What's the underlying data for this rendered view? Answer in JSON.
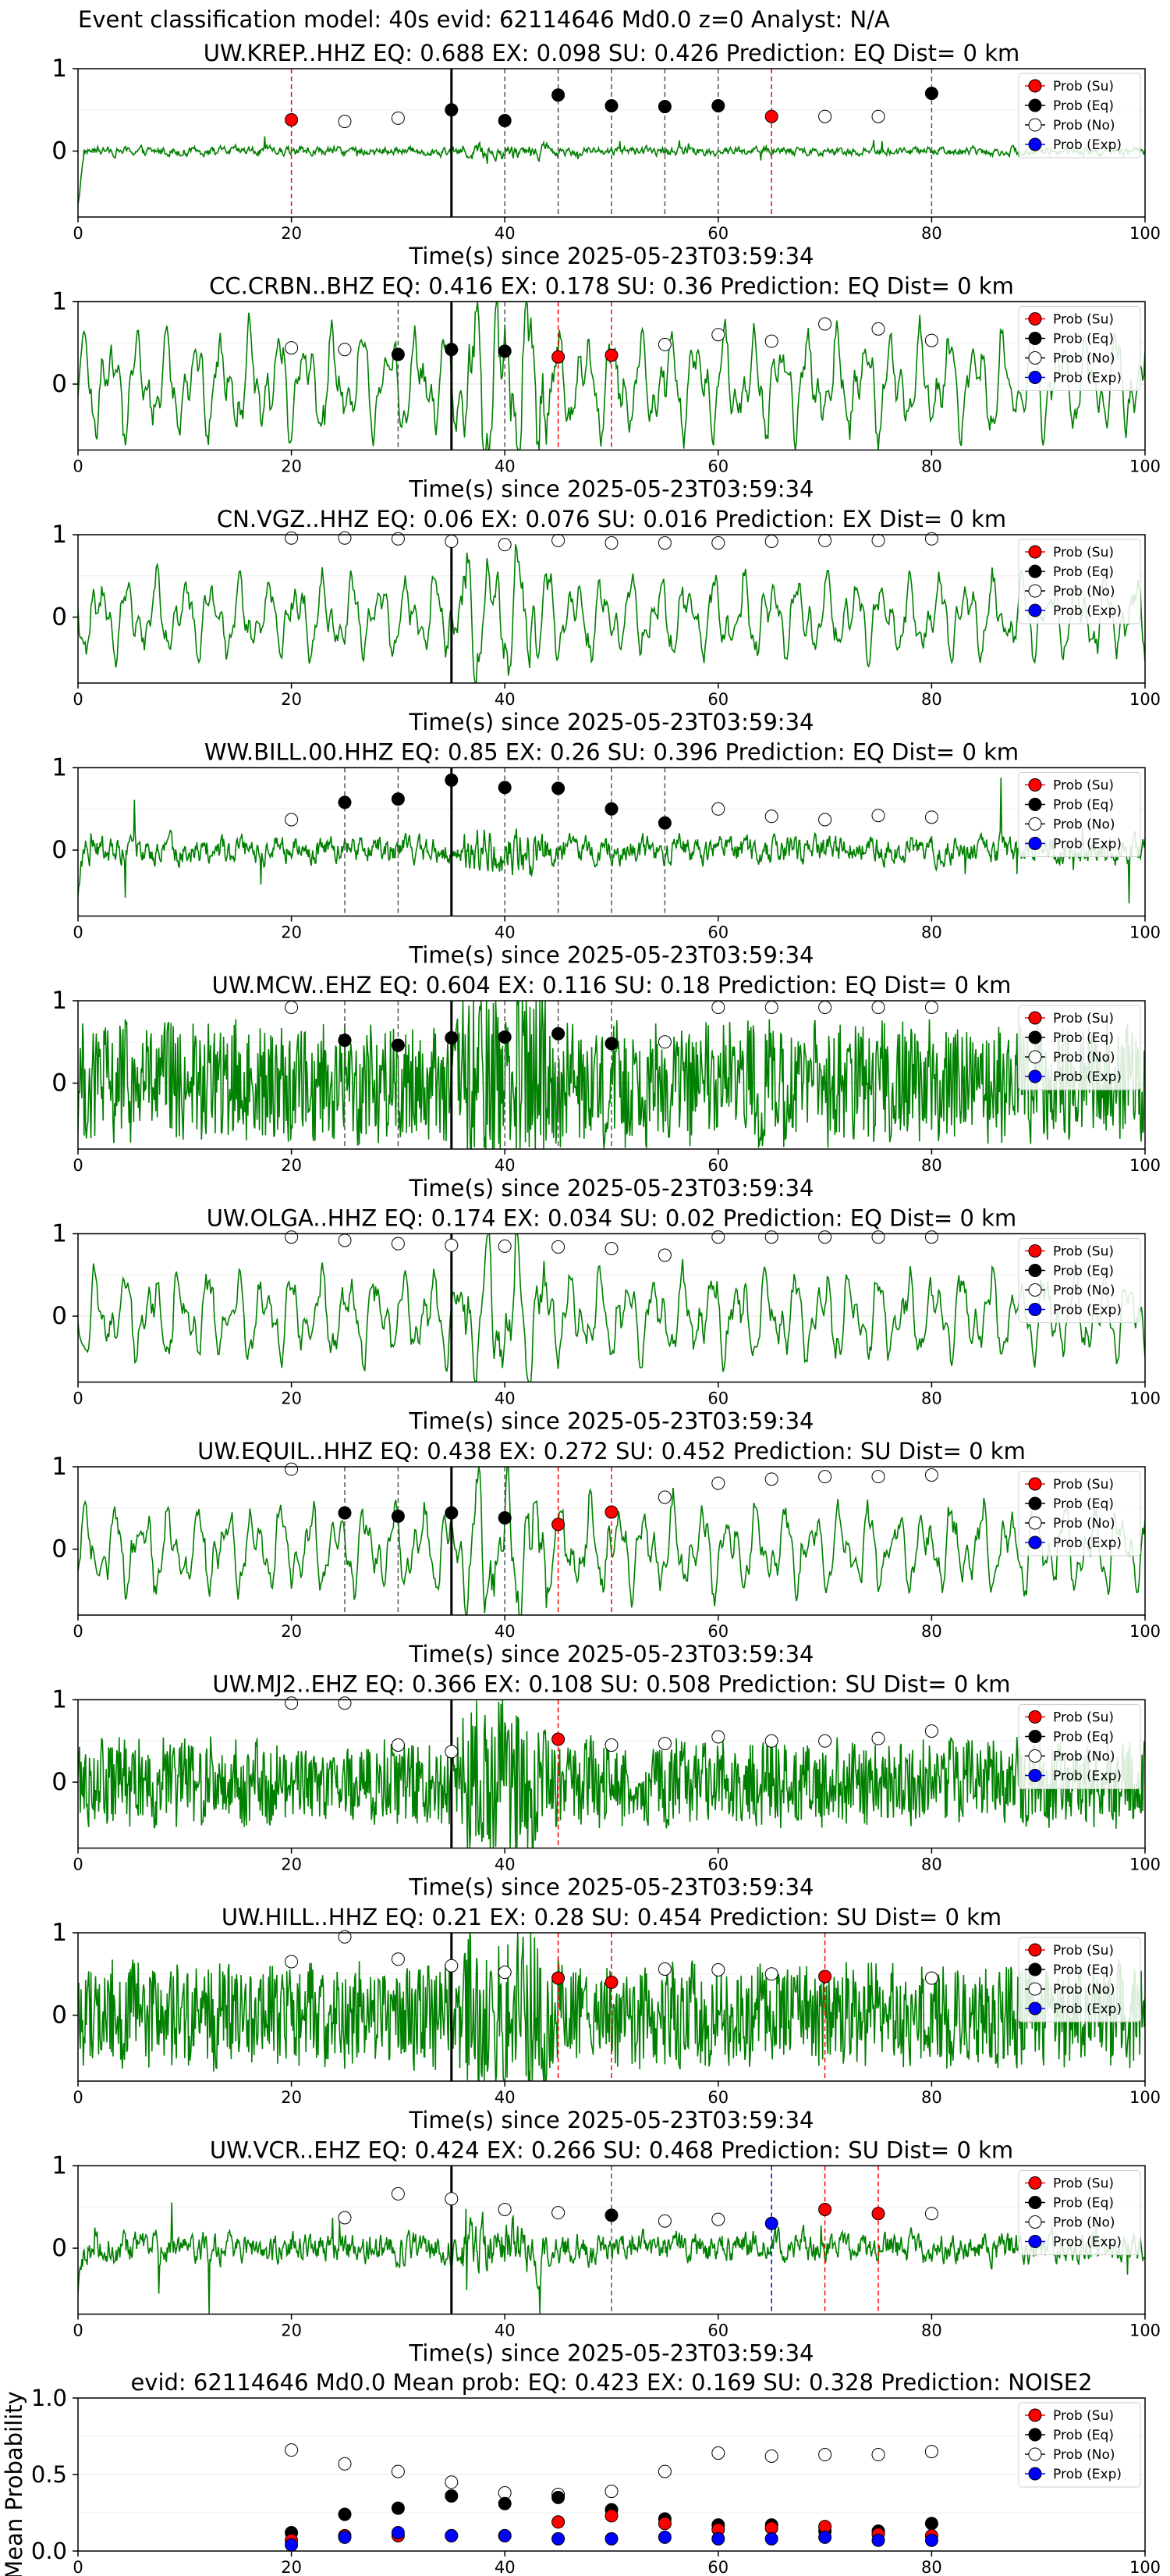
{
  "figure_title": "Event classification model: 40s evid: 62114646 Md0.0 z=0 Analyst: N/A",
  "colors": {
    "waveform": "#008000",
    "su": "#ff0000",
    "eq": "#000000",
    "no": "#ffffff",
    "exp": "#0000ff",
    "origin_line": "#000000"
  },
  "legend_labels": [
    "Prob (Su)",
    "Prob (Eq)",
    "Prob (No)",
    "Prob (Exp)"
  ],
  "chart_data": [
    {
      "type": "scatter",
      "station": "UW.KREP..HHZ",
      "title": "UW.KREP..HHZ   EQ: 0.688  EX: 0.098  SU: 0.426   Prediction: EQ    Dist= 0 km",
      "xlabel": "Time(s) since 2025-05-23T03:59:34",
      "xlim": [
        0,
        100
      ],
      "ylim": [
        -0.8,
        1
      ],
      "xticks": [
        "0",
        "20",
        "40",
        "60",
        "80",
        "100"
      ],
      "yticks": [
        "0",
        "1"
      ],
      "noise_style": "spiky",
      "waveform_amp": 0.1,
      "origin_time": 35,
      "points": {
        "su": [
          [
            20,
            0.38
          ],
          [
            65,
            0.42
          ]
        ],
        "eq": [
          [
            35,
            0.5
          ],
          [
            40,
            0.37
          ],
          [
            45,
            0.68
          ],
          [
            50,
            0.55
          ],
          [
            55,
            0.54
          ],
          [
            60,
            0.55
          ],
          [
            80,
            0.7
          ]
        ],
        "no": [
          [
            25,
            0.36
          ],
          [
            30,
            0.4
          ],
          [
            70,
            0.42
          ],
          [
            75,
            0.42
          ]
        ],
        "exp": []
      },
      "vlines": {
        "su": [
          20,
          65
        ],
        "eq": [
          40,
          45,
          50,
          55,
          60,
          80
        ],
        "exp": []
      }
    },
    {
      "type": "scatter",
      "station": "CC.CRBN..BHZ",
      "title": "CC.CRBN..BHZ   EQ: 0.416  EX: 0.178  SU: 0.36   Prediction: EQ    Dist= 0 km",
      "xlabel": "Time(s) since 2025-05-23T03:59:34",
      "xlim": [
        0,
        100
      ],
      "ylim": [
        -0.8,
        1
      ],
      "xticks": [
        "0",
        "20",
        "40",
        "60",
        "80",
        "100"
      ],
      "yticks": [
        "0",
        "1"
      ],
      "noise_style": "lowfreq",
      "waveform_amp": 0.7,
      "origin_time": 35,
      "points": {
        "su": [
          [
            45,
            0.33
          ],
          [
            50,
            0.35
          ]
        ],
        "eq": [
          [
            30,
            0.36
          ],
          [
            35,
            0.42
          ],
          [
            40,
            0.4
          ]
        ],
        "no": [
          [
            20,
            0.44
          ],
          [
            25,
            0.42
          ],
          [
            55,
            0.48
          ],
          [
            60,
            0.6
          ],
          [
            65,
            0.52
          ],
          [
            70,
            0.73
          ],
          [
            75,
            0.67
          ],
          [
            80,
            0.53
          ]
        ],
        "exp": []
      },
      "vlines": {
        "su": [
          45,
          50
        ],
        "eq": [
          30,
          40
        ],
        "exp": []
      }
    },
    {
      "type": "scatter",
      "station": "CN.VGZ..HHZ",
      "title": "CN.VGZ..HHZ   EQ: 0.06  EX: 0.076  SU: 0.016   Prediction: EX    Dist= 0 km",
      "xlabel": "Time(s) since 2025-05-23T03:59:34",
      "xlim": [
        0,
        100
      ],
      "ylim": [
        -0.8,
        1
      ],
      "xticks": [
        "0",
        "20",
        "40",
        "60",
        "80",
        "100"
      ],
      "yticks": [
        "0",
        "1"
      ],
      "noise_style": "lowfreq",
      "waveform_amp": 0.55,
      "origin_time": 35,
      "points": {
        "su": [],
        "eq": [],
        "no": [
          [
            20,
            0.96
          ],
          [
            25,
            0.96
          ],
          [
            30,
            0.95
          ],
          [
            35,
            0.92
          ],
          [
            40,
            0.88
          ],
          [
            45,
            0.93
          ],
          [
            50,
            0.9
          ],
          [
            55,
            0.9
          ],
          [
            60,
            0.9
          ],
          [
            65,
            0.92
          ],
          [
            70,
            0.93
          ],
          [
            75,
            0.93
          ],
          [
            80,
            0.95
          ]
        ],
        "exp": []
      },
      "vlines": {
        "su": [],
        "eq": [],
        "exp": []
      }
    },
    {
      "type": "scatter",
      "station": "WW.BILL.00.HHZ",
      "title": "WW.BILL.00.HHZ   EQ: 0.85  EX: 0.26  SU: 0.396   Prediction: EQ    Dist= 0 km",
      "xlabel": "Time(s) since 2025-05-23T03:59:34",
      "xlim": [
        0,
        100
      ],
      "ylim": [
        -0.8,
        1
      ],
      "xticks": [
        "0",
        "20",
        "40",
        "60",
        "80",
        "100"
      ],
      "yticks": [
        "0",
        "1"
      ],
      "noise_style": "spiky",
      "waveform_amp": 0.3,
      "origin_time": 35,
      "points": {
        "su": [],
        "eq": [
          [
            25,
            0.58
          ],
          [
            30,
            0.62
          ],
          [
            35,
            0.85
          ],
          [
            40,
            0.76
          ],
          [
            45,
            0.75
          ],
          [
            50,
            0.5
          ],
          [
            55,
            0.33
          ]
        ],
        "no": [
          [
            20,
            0.37
          ],
          [
            60,
            0.5
          ],
          [
            65,
            0.41
          ],
          [
            70,
            0.37
          ],
          [
            75,
            0.42
          ],
          [
            80,
            0.4
          ]
        ],
        "exp": []
      },
      "vlines": {
        "su": [],
        "eq": [
          25,
          30,
          40,
          45,
          50,
          55
        ],
        "exp": []
      }
    },
    {
      "type": "scatter",
      "station": "UW.MCW..EHZ",
      "title": "UW.MCW..EHZ   EQ: 0.604  EX: 0.116  SU: 0.18   Prediction: EQ    Dist= 0 km",
      "xlabel": "Time(s) since 2025-05-23T03:59:34",
      "xlim": [
        0,
        100
      ],
      "ylim": [
        -0.8,
        1
      ],
      "xticks": [
        "0",
        "20",
        "40",
        "60",
        "80",
        "100"
      ],
      "yticks": [
        "0",
        "1"
      ],
      "noise_style": "dense",
      "waveform_amp": 0.7,
      "origin_time": 35,
      "points": {
        "su": [],
        "eq": [
          [
            25,
            0.52
          ],
          [
            30,
            0.46
          ],
          [
            35,
            0.55
          ],
          [
            40,
            0.56
          ],
          [
            45,
            0.6
          ],
          [
            50,
            0.48
          ]
        ],
        "no": [
          [
            20,
            0.92
          ],
          [
            55,
            0.5
          ],
          [
            60,
            0.92
          ],
          [
            65,
            0.92
          ],
          [
            70,
            0.92
          ],
          [
            75,
            0.92
          ],
          [
            80,
            0.92
          ]
        ],
        "exp": []
      },
      "vlines": {
        "su": [],
        "eq": [
          25,
          30,
          40,
          45,
          50
        ],
        "exp": []
      }
    },
    {
      "type": "scatter",
      "station": "UW.OLGA..HHZ",
      "title": "UW.OLGA..HHZ   EQ: 0.174  EX: 0.034  SU: 0.02   Prediction: EQ    Dist= 0 km",
      "xlabel": "Time(s) since 2025-05-23T03:59:34",
      "xlim": [
        0,
        100
      ],
      "ylim": [
        -0.8,
        1
      ],
      "xticks": [
        "0",
        "20",
        "40",
        "60",
        "80",
        "100"
      ],
      "yticks": [
        "0",
        "1"
      ],
      "noise_style": "lowfreq",
      "waveform_amp": 0.6,
      "origin_time": 35,
      "points": {
        "su": [],
        "eq": [],
        "no": [
          [
            20,
            0.96
          ],
          [
            25,
            0.92
          ],
          [
            30,
            0.88
          ],
          [
            35,
            0.86
          ],
          [
            40,
            0.85
          ],
          [
            45,
            0.84
          ],
          [
            50,
            0.82
          ],
          [
            55,
            0.74
          ],
          [
            60,
            0.96
          ],
          [
            65,
            0.96
          ],
          [
            70,
            0.96
          ],
          [
            75,
            0.96
          ],
          [
            80,
            0.96
          ]
        ],
        "exp": []
      },
      "vlines": {
        "su": [],
        "eq": [],
        "exp": []
      }
    },
    {
      "type": "scatter",
      "station": "UW.EQUIL..HHZ",
      "title": "UW.EQUIL..HHZ   EQ: 0.438  EX: 0.272  SU: 0.452   Prediction: SU    Dist= 0 km",
      "xlabel": "Time(s) since 2025-05-23T03:59:34",
      "xlim": [
        0,
        100
      ],
      "ylim": [
        -0.8,
        1
      ],
      "xticks": [
        "0",
        "20",
        "40",
        "60",
        "80",
        "100"
      ],
      "yticks": [
        "0",
        "1"
      ],
      "noise_style": "lowfreq",
      "waveform_amp": 0.6,
      "origin_time": 35,
      "points": {
        "su": [
          [
            45,
            0.3
          ],
          [
            50,
            0.45
          ]
        ],
        "eq": [
          [
            25,
            0.44
          ],
          [
            30,
            0.4
          ],
          [
            35,
            0.44
          ],
          [
            40,
            0.38
          ]
        ],
        "no": [
          [
            20,
            0.97
          ],
          [
            55,
            0.63
          ],
          [
            60,
            0.8
          ],
          [
            65,
            0.85
          ],
          [
            70,
            0.88
          ],
          [
            75,
            0.88
          ],
          [
            80,
            0.9
          ]
        ],
        "exp": []
      },
      "vlines": {
        "su": [
          45,
          50
        ],
        "eq": [
          25,
          30,
          40
        ],
        "exp": []
      }
    },
    {
      "type": "scatter",
      "station": "UW.MJ2..EHZ",
      "title": "UW.MJ2..EHZ   EQ: 0.366  EX: 0.108  SU: 0.508   Prediction: SU    Dist= 0 km",
      "xlabel": "Time(s) since 2025-05-23T03:59:34",
      "xlim": [
        0,
        100
      ],
      "ylim": [
        -0.8,
        1
      ],
      "xticks": [
        "0",
        "20",
        "40",
        "60",
        "80",
        "100"
      ],
      "yticks": [
        "0",
        "1"
      ],
      "noise_style": "dense",
      "waveform_amp": 0.5,
      "origin_time": 35,
      "points": {
        "su": [
          [
            45,
            0.52
          ]
        ],
        "eq": [],
        "no": [
          [
            20,
            0.96
          ],
          [
            25,
            0.96
          ],
          [
            30,
            0.45
          ],
          [
            35,
            0.37
          ],
          [
            50,
            0.45
          ],
          [
            55,
            0.47
          ],
          [
            60,
            0.55
          ],
          [
            65,
            0.5
          ],
          [
            70,
            0.5
          ],
          [
            75,
            0.53
          ],
          [
            80,
            0.62
          ]
        ],
        "exp": []
      },
      "vlines": {
        "su": [
          45
        ],
        "eq": [],
        "exp": []
      }
    },
    {
      "type": "scatter",
      "station": "UW.HILL..HHZ",
      "title": "UW.HILL..HHZ   EQ: 0.21  EX: 0.28  SU: 0.454   Prediction: SU    Dist= 0 km",
      "xlabel": "Time(s) since 2025-05-23T03:59:34",
      "xlim": [
        0,
        100
      ],
      "ylim": [
        -0.8,
        1
      ],
      "xticks": [
        "0",
        "20",
        "40",
        "60",
        "80",
        "100"
      ],
      "yticks": [
        "0",
        "1"
      ],
      "noise_style": "dense",
      "waveform_amp": 0.6,
      "origin_time": 35,
      "points": {
        "su": [
          [
            45,
            0.45
          ],
          [
            50,
            0.4
          ],
          [
            70,
            0.47
          ]
        ],
        "eq": [],
        "no": [
          [
            20,
            0.65
          ],
          [
            25,
            0.95
          ],
          [
            30,
            0.68
          ],
          [
            35,
            0.6
          ],
          [
            40,
            0.52
          ],
          [
            55,
            0.56
          ],
          [
            60,
            0.55
          ],
          [
            65,
            0.5
          ],
          [
            80,
            0.45
          ]
        ],
        "exp": []
      },
      "vlines": {
        "su": [
          45,
          50,
          70
        ],
        "eq": [],
        "exp": []
      }
    },
    {
      "type": "scatter",
      "station": "UW.VCR..EHZ",
      "title": "UW.VCR..EHZ   EQ: 0.424  EX: 0.266  SU: 0.468   Prediction: SU    Dist= 0 km",
      "xlabel": "Time(s) since 2025-05-23T03:59:34",
      "xlim": [
        0,
        100
      ],
      "ylim": [
        -0.8,
        1
      ],
      "xticks": [
        "0",
        "20",
        "40",
        "60",
        "80",
        "100"
      ],
      "yticks": [
        "0",
        "1"
      ],
      "noise_style": "spiky",
      "waveform_amp": 0.35,
      "origin_time": 35,
      "points": {
        "su": [
          [
            70,
            0.47
          ],
          [
            75,
            0.42
          ]
        ],
        "eq": [
          [
            50,
            0.4
          ]
        ],
        "no": [
          [
            25,
            0.37
          ],
          [
            30,
            0.66
          ],
          [
            35,
            0.6
          ],
          [
            40,
            0.47
          ],
          [
            45,
            0.43
          ],
          [
            55,
            0.33
          ],
          [
            60,
            0.35
          ],
          [
            80,
            0.42
          ]
        ],
        "exp": [
          [
            65,
            0.3
          ]
        ]
      },
      "vlines": {
        "su": [
          70,
          75
        ],
        "eq": [
          50
        ],
        "exp": [
          65
        ]
      }
    },
    {
      "type": "scatter",
      "title": "evid: 62114646  Md0.0   Mean prob:   EQ: 0.423  EX: 0.169  SU: 0.328   Prediction: NOISE2",
      "xlabel": "",
      "ylabel": "Mean Probability",
      "xlim": [
        0,
        100
      ],
      "ylim": [
        0,
        1
      ],
      "xticks": [
        "0",
        "20",
        "40",
        "60",
        "80",
        "100"
      ],
      "yticks": [
        "0.0",
        "0.5",
        "1.0"
      ],
      "points": {
        "su": [
          [
            20,
            0.07
          ],
          [
            25,
            0.1
          ],
          [
            30,
            0.1
          ],
          [
            35,
            0.1
          ],
          [
            40,
            0.1
          ],
          [
            45,
            0.19
          ],
          [
            50,
            0.23
          ],
          [
            55,
            0.18
          ],
          [
            60,
            0.14
          ],
          [
            65,
            0.15
          ],
          [
            70,
            0.16
          ],
          [
            75,
            0.11
          ],
          [
            80,
            0.1
          ]
        ],
        "eq": [
          [
            20,
            0.12
          ],
          [
            25,
            0.24
          ],
          [
            30,
            0.28
          ],
          [
            35,
            0.36
          ],
          [
            40,
            0.31
          ],
          [
            45,
            0.35
          ],
          [
            50,
            0.27
          ],
          [
            55,
            0.21
          ],
          [
            60,
            0.17
          ],
          [
            65,
            0.17
          ],
          [
            70,
            0.13
          ],
          [
            75,
            0.13
          ],
          [
            80,
            0.18
          ]
        ],
        "no": [
          [
            20,
            0.66
          ],
          [
            25,
            0.57
          ],
          [
            30,
            0.52
          ],
          [
            35,
            0.45
          ],
          [
            40,
            0.38
          ],
          [
            45,
            0.37
          ],
          [
            50,
            0.39
          ],
          [
            55,
            0.52
          ],
          [
            60,
            0.64
          ],
          [
            65,
            0.62
          ],
          [
            70,
            0.63
          ],
          [
            75,
            0.63
          ],
          [
            80,
            0.65
          ]
        ],
        "exp": [
          [
            20,
            0.04
          ],
          [
            25,
            0.09
          ],
          [
            30,
            0.12
          ],
          [
            35,
            0.1
          ],
          [
            40,
            0.1
          ],
          [
            45,
            0.08
          ],
          [
            50,
            0.08
          ],
          [
            55,
            0.09
          ],
          [
            60,
            0.08
          ],
          [
            65,
            0.08
          ],
          [
            70,
            0.09
          ],
          [
            75,
            0.07
          ],
          [
            80,
            0.07
          ]
        ]
      },
      "vlines": {
        "su": [],
        "eq": [],
        "exp": []
      }
    }
  ]
}
